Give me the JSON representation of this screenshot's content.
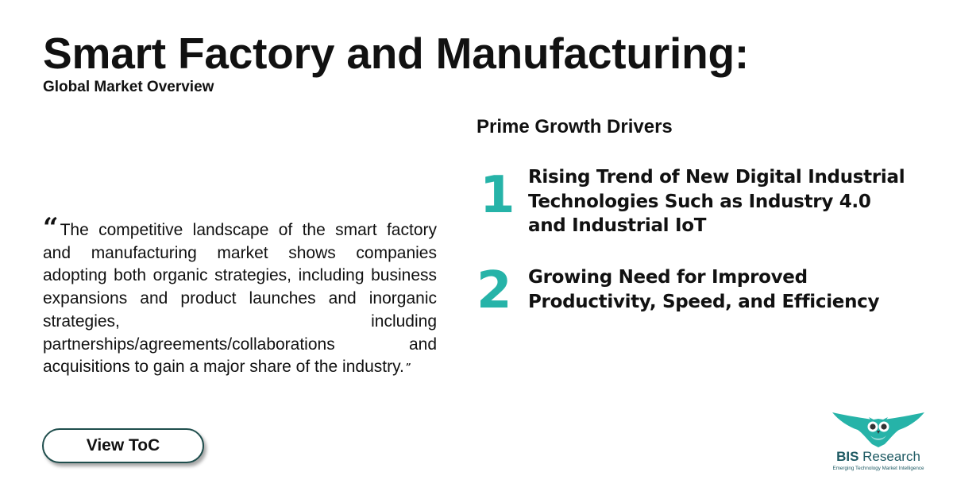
{
  "header": {
    "title": "Smart Factory and Manufacturing:",
    "subtitle": "Global Market Overview"
  },
  "quote": {
    "open_mark": "“",
    "text": "The competitive landscape of the smart factory and manufacturing market shows companies adopting both organic strategies, including business expansions and product launches and inorganic strategies, including partnerships/agreements/collaborations and acquisitions to gain a major share of the industry.",
    "close_mark": "”"
  },
  "cta": {
    "label": "View ToC"
  },
  "drivers": {
    "heading": "Prime Growth Drivers",
    "items": [
      {
        "number": "1",
        "text": "Rising Trend of New Digital Industrial Technologies Such as Industry 4.0 and Industrial IoT"
      },
      {
        "number": "2",
        "text": "Growing Need for Improved Productivity, Speed, and Efficiency"
      }
    ]
  },
  "logo": {
    "brand_bold": "BIS",
    "brand_rest": " Research",
    "tagline": "Emerging Technology Market Intelligence",
    "icon": "owl-icon",
    "color": "#26b3a8"
  },
  "colors": {
    "accent": "#26b3a8",
    "button_border": "#1f4e4d",
    "logo_text": "#1e5a63"
  }
}
